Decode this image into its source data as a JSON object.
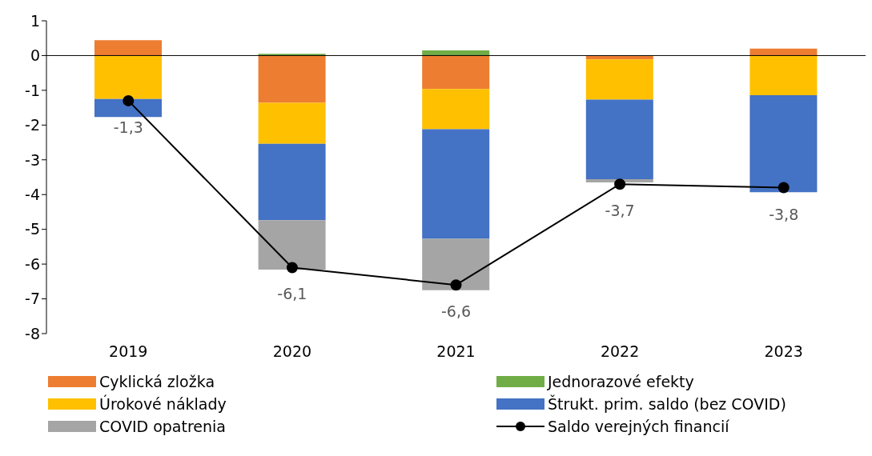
{
  "chart_data": {
    "type": "bar",
    "stacked": true,
    "categories": [
      "2019",
      "2020",
      "2021",
      "2022",
      "2023"
    ],
    "series": [
      {
        "name": "Cyklická zložka",
        "color": "#ed7d31",
        "values": [
          0.44,
          -1.36,
          -0.96,
          -0.11,
          0.2
        ]
      },
      {
        "name": "Jednorazové efekty",
        "color": "#70ad47",
        "values": [
          null,
          0.05,
          0.15,
          null,
          null
        ]
      },
      {
        "name": "Úrokové náklady",
        "color": "#ffc000",
        "values": [
          -1.25,
          -1.18,
          -1.16,
          -1.16,
          -1.14
        ]
      },
      {
        "name": "Štrukt. prim. saldo (bez COVID)",
        "color": "#4472c4",
        "values": [
          -0.52,
          -2.2,
          -3.15,
          -2.29,
          -2.79
        ]
      },
      {
        "name": "COVID opatrenia",
        "color": "#a5a5a5",
        "values": [
          null,
          -1.42,
          -1.48,
          -0.09,
          null
        ]
      },
      {
        "name": "Saldo verejných financií",
        "type": "line",
        "color": "#000000",
        "marker": "circle",
        "values": [
          -1.3,
          -6.1,
          -6.6,
          -3.7,
          -3.8
        ],
        "value_labels": [
          "-1,3",
          "-6,1",
          "-6,6",
          "-3,7",
          "-3,8"
        ]
      }
    ],
    "ylim": [
      -8,
      1
    ],
    "yticks": [
      -8,
      -7,
      -6,
      -5,
      -4,
      -3,
      -2,
      -1,
      0,
      1
    ],
    "ref_lines": [
      {
        "axis": "y",
        "value": 0,
        "color": "#000000"
      }
    ],
    "legend": "bottom"
  }
}
